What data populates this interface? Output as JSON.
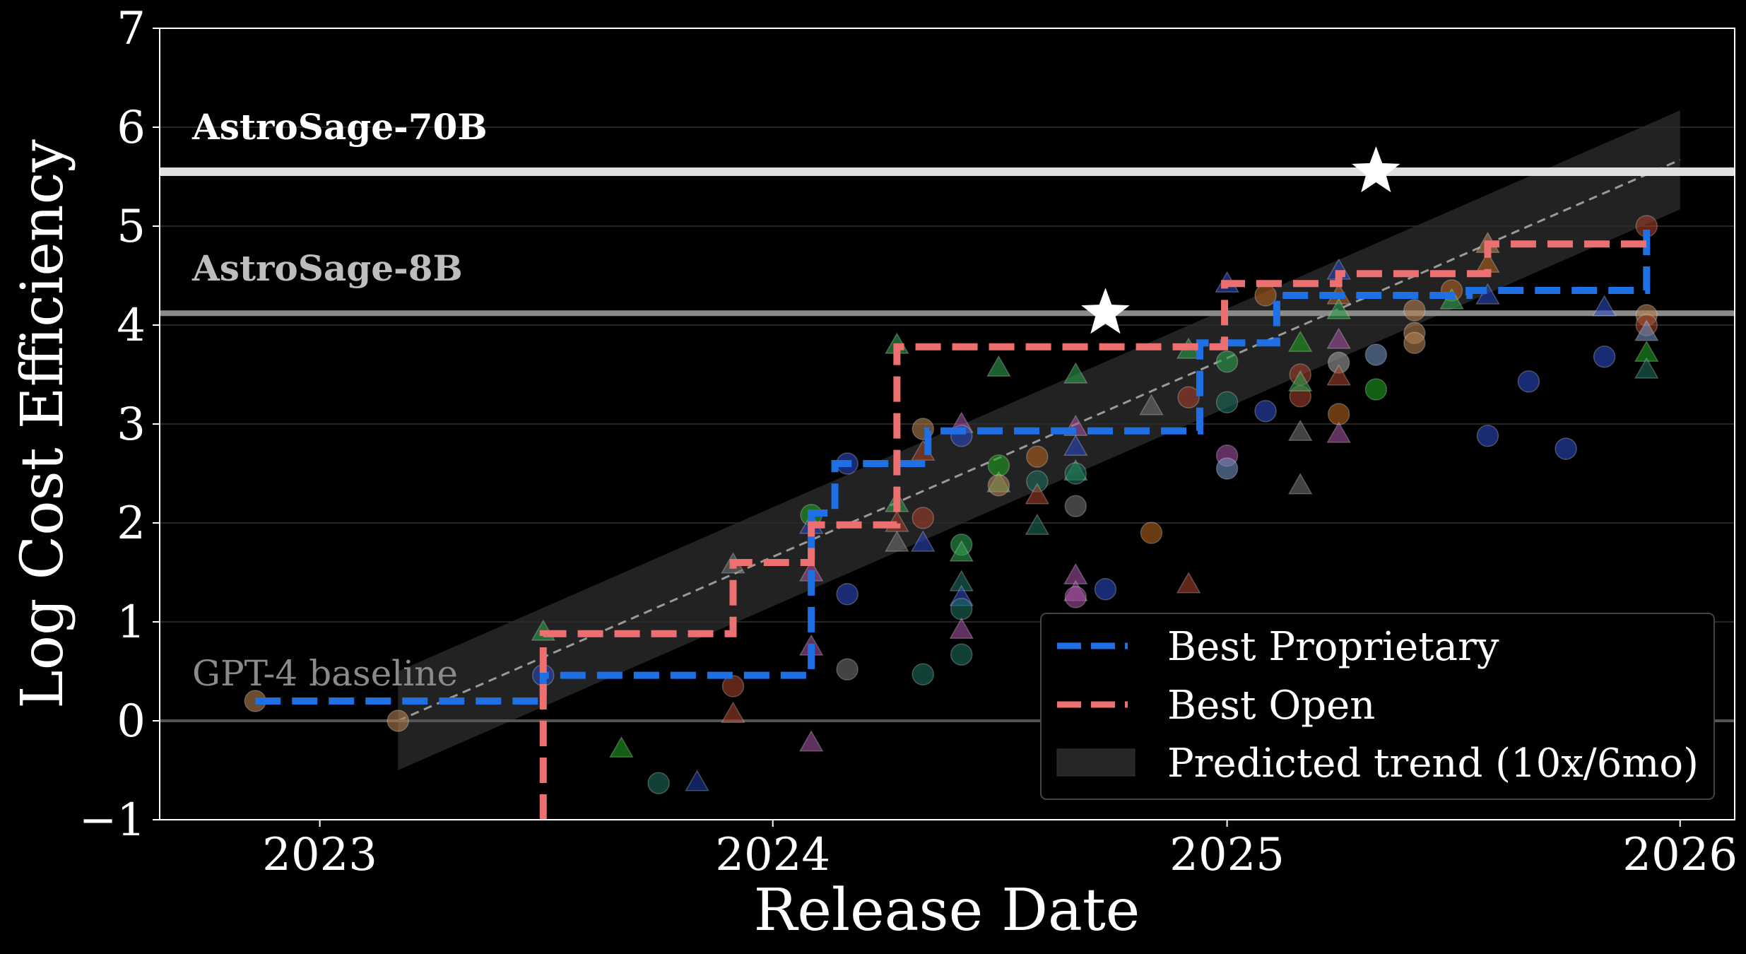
{
  "chart_data": {
    "type": "scatter",
    "title": "",
    "xlabel": "Release Date",
    "ylabel": "Log Cost Efficiency",
    "xlim": [
      "2022-08-25",
      "2026-02-14"
    ],
    "ylim": [
      -1,
      7
    ],
    "x_ticks": [
      {
        "date": "2023-01-01",
        "label": "2023"
      },
      {
        "date": "2024-01-01",
        "label": "2024"
      },
      {
        "date": "2025-01-01",
        "label": "2025"
      },
      {
        "date": "2026-01-01",
        "label": "2026"
      }
    ],
    "y_ticks": [
      {
        "value": -1,
        "label": "−1"
      },
      {
        "value": 0,
        "label": "0"
      },
      {
        "value": 1,
        "label": "1"
      },
      {
        "value": 2,
        "label": "2"
      },
      {
        "value": 3,
        "label": "3"
      },
      {
        "value": 4,
        "label": "4"
      },
      {
        "value": 5,
        "label": "5"
      },
      {
        "value": 6,
        "label": "6"
      },
      {
        "value": 7,
        "label": "7"
      }
    ],
    "grid": "horizontal",
    "legend_position": "lower-right",
    "reference_lines": [
      {
        "label": "AstroSage-70B",
        "y": 5.55,
        "color": "#e0e0e0"
      },
      {
        "label": "AstroSage-8B",
        "y": 4.12,
        "color": "#8a8a8a"
      },
      {
        "label": "GPT-4 baseline",
        "y": 0,
        "color": "#555555"
      }
    ],
    "stars": [
      {
        "date": "2024-09-25",
        "y": 4.12
      },
      {
        "date": "2025-05-01",
        "y": 5.55
      }
    ],
    "series": [
      {
        "name": "Best Proprietary",
        "color": "#1f6fe5",
        "style": "step-dashed",
        "points": [
          {
            "date": "2022-11-10",
            "y": 0.2
          },
          {
            "date": "2023-06-30",
            "y": 0.46
          },
          {
            "date": "2024-02-01",
            "y": 2.1
          },
          {
            "date": "2024-02-20",
            "y": 2.6
          },
          {
            "date": "2024-05-05",
            "y": 2.93
          },
          {
            "date": "2024-12-10",
            "y": 3.82
          },
          {
            "date": "2025-02-10",
            "y": 4.3
          },
          {
            "date": "2025-07-15",
            "y": 4.35
          },
          {
            "date": "2025-12-05",
            "y": 4.98
          }
        ]
      },
      {
        "name": "Best Open",
        "color": "#ec7070",
        "style": "step-dashed",
        "points": [
          {
            "date": "2023-06-30",
            "y": -1
          },
          {
            "date": "2023-06-30",
            "y": 0.88
          },
          {
            "date": "2023-11-30",
            "y": 1.6
          },
          {
            "date": "2024-02-01",
            "y": 1.98
          },
          {
            "date": "2024-04-10",
            "y": 3.78
          },
          {
            "date": "2024-12-30",
            "y": 4.42
          },
          {
            "date": "2025-04-01",
            "y": 4.52
          },
          {
            "date": "2025-07-30",
            "y": 4.82
          },
          {
            "date": "2025-12-05",
            "y": 4.82
          }
        ]
      }
    ],
    "trend": {
      "name": "Predicted trend (10x/6mo)",
      "start": {
        "date": "2023-03-05",
        "y": 0
      },
      "end": {
        "date": "2026-01-01",
        "y": 5.67
      },
      "band_halfwidth": 0.5
    },
    "scatter_points": [
      {
        "date": "2022-11-10",
        "y": 0.2,
        "shape": "circle",
        "color": "#b08050"
      },
      {
        "date": "2023-03-05",
        "y": 0.0,
        "shape": "circle",
        "color": "#b08050"
      },
      {
        "date": "2023-06-30",
        "y": 0.9,
        "shape": "triangle",
        "color": "#2e9e4e"
      },
      {
        "date": "2023-06-30",
        "y": 0.46,
        "shape": "circle",
        "color": "#2a4ac0"
      },
      {
        "date": "2023-09-01",
        "y": -0.28,
        "shape": "triangle",
        "color": "#1f9e1f"
      },
      {
        "date": "2023-10-01",
        "y": -0.63,
        "shape": "circle",
        "color": "#1a6a5a"
      },
      {
        "date": "2023-11-01",
        "y": -0.62,
        "shape": "triangle",
        "color": "#1a3aa0"
      },
      {
        "date": "2023-11-30",
        "y": 0.35,
        "shape": "circle",
        "color": "#a0402a"
      },
      {
        "date": "2023-11-30",
        "y": 0.07,
        "shape": "triangle",
        "color": "#a0402a"
      },
      {
        "date": "2023-11-30",
        "y": 1.58,
        "shape": "triangle",
        "color": "#707070"
      },
      {
        "date": "2024-02-01",
        "y": 2.08,
        "shape": "circle",
        "color": "#1f9e1f"
      },
      {
        "date": "2024-02-01",
        "y": 1.5,
        "shape": "triangle",
        "color": "#a050a0"
      },
      {
        "date": "2024-02-01",
        "y": 0.75,
        "shape": "triangle",
        "color": "#a050a0"
      },
      {
        "date": "2024-02-01",
        "y": -0.22,
        "shape": "triangle",
        "color": "#a050a0"
      },
      {
        "date": "2024-02-01",
        "y": 1.98,
        "shape": "triangle",
        "color": "#2a4ac0"
      },
      {
        "date": "2024-03-01",
        "y": 2.6,
        "shape": "circle",
        "color": "#2a4ac0"
      },
      {
        "date": "2024-03-01",
        "y": 1.28,
        "shape": "circle",
        "color": "#2a4ac0"
      },
      {
        "date": "2024-03-01",
        "y": 0.52,
        "shape": "circle",
        "color": "#707070"
      },
      {
        "date": "2024-04-10",
        "y": 3.8,
        "shape": "triangle",
        "color": "#2e9e4e"
      },
      {
        "date": "2024-04-10",
        "y": 2.2,
        "shape": "triangle",
        "color": "#2e9e4e"
      },
      {
        "date": "2024-04-10",
        "y": 1.8,
        "shape": "triangle",
        "color": "#707070"
      },
      {
        "date": "2024-04-10",
        "y": 2.0,
        "shape": "triangle",
        "color": "#a0402a"
      },
      {
        "date": "2024-05-01",
        "y": 2.95,
        "shape": "circle",
        "color": "#b08050"
      },
      {
        "date": "2024-05-01",
        "y": 2.72,
        "shape": "triangle",
        "color": "#a0402a"
      },
      {
        "date": "2024-05-01",
        "y": 2.05,
        "shape": "circle",
        "color": "#a0402a"
      },
      {
        "date": "2024-05-01",
        "y": 1.8,
        "shape": "triangle",
        "color": "#2a4ac0"
      },
      {
        "date": "2024-05-01",
        "y": 0.47,
        "shape": "circle",
        "color": "#1a6a5a"
      },
      {
        "date": "2024-06-01",
        "y": 3.0,
        "shape": "triangle",
        "color": "#a050a0"
      },
      {
        "date": "2024-06-01",
        "y": 2.88,
        "shape": "circle",
        "color": "#2a4ac0"
      },
      {
        "date": "2024-06-01",
        "y": 1.78,
        "shape": "circle",
        "color": "#2e9e4e"
      },
      {
        "date": "2024-06-01",
        "y": 1.7,
        "shape": "triangle",
        "color": "#2e9e4e"
      },
      {
        "date": "2024-06-01",
        "y": 1.4,
        "shape": "triangle",
        "color": "#1a6a5a"
      },
      {
        "date": "2024-06-01",
        "y": 1.25,
        "shape": "triangle",
        "color": "#2a4ac0"
      },
      {
        "date": "2024-06-01",
        "y": 1.13,
        "shape": "circle",
        "color": "#1a6a5a"
      },
      {
        "date": "2024-06-01",
        "y": 0.92,
        "shape": "triangle",
        "color": "#a050a0"
      },
      {
        "date": "2024-06-01",
        "y": 0.67,
        "shape": "circle",
        "color": "#1a6a5a"
      },
      {
        "date": "2024-07-01",
        "y": 3.57,
        "shape": "triangle",
        "color": "#2e9e4e"
      },
      {
        "date": "2024-07-01",
        "y": 2.58,
        "shape": "circle",
        "color": "#1f9e1f"
      },
      {
        "date": "2024-07-01",
        "y": 2.4,
        "shape": "triangle",
        "color": "#2e9e4e"
      },
      {
        "date": "2024-07-01",
        "y": 2.38,
        "shape": "circle",
        "color": "#b08050"
      },
      {
        "date": "2024-08-01",
        "y": 2.67,
        "shape": "circle",
        "color": "#b06020"
      },
      {
        "date": "2024-08-01",
        "y": 2.42,
        "shape": "circle",
        "color": "#1a6a5a"
      },
      {
        "date": "2024-08-01",
        "y": 2.28,
        "shape": "triangle",
        "color": "#a0402a"
      },
      {
        "date": "2024-08-01",
        "y": 1.97,
        "shape": "triangle",
        "color": "#1a6a5a"
      },
      {
        "date": "2024-09-01",
        "y": 3.5,
        "shape": "triangle",
        "color": "#2e9e4e"
      },
      {
        "date": "2024-09-01",
        "y": 2.97,
        "shape": "triangle",
        "color": "#a050a0"
      },
      {
        "date": "2024-09-01",
        "y": 2.77,
        "shape": "triangle",
        "color": "#2a4ac0"
      },
      {
        "date": "2024-09-01",
        "y": 2.52,
        "shape": "triangle",
        "color": "#2e9e4e"
      },
      {
        "date": "2024-09-01",
        "y": 2.5,
        "shape": "circle",
        "color": "#1a6a5a"
      },
      {
        "date": "2024-09-01",
        "y": 2.17,
        "shape": "circle",
        "color": "#707070"
      },
      {
        "date": "2024-09-01",
        "y": 1.47,
        "shape": "triangle",
        "color": "#a050a0"
      },
      {
        "date": "2024-09-01",
        "y": 1.3,
        "shape": "triangle",
        "color": "#a050a0"
      },
      {
        "date": "2024-09-01",
        "y": 1.25,
        "shape": "circle",
        "color": "#a050a0"
      },
      {
        "date": "2024-09-25",
        "y": 1.33,
        "shape": "circle",
        "color": "#2a4ac0"
      },
      {
        "date": "2024-11-01",
        "y": 3.18,
        "shape": "triangle",
        "color": "#707070"
      },
      {
        "date": "2024-11-01",
        "y": 1.9,
        "shape": "circle",
        "color": "#b06020"
      },
      {
        "date": "2024-12-01",
        "y": 3.75,
        "shape": "triangle",
        "color": "#2e9e4e"
      },
      {
        "date": "2024-12-01",
        "y": 3.27,
        "shape": "circle",
        "color": "#a0402a"
      },
      {
        "date": "2024-12-01",
        "y": 1.38,
        "shape": "triangle",
        "color": "#a0402a"
      },
      {
        "date": "2025-01-01",
        "y": 4.42,
        "shape": "triangle",
        "color": "#2a4ac0"
      },
      {
        "date": "2025-01-01",
        "y": 3.63,
        "shape": "circle",
        "color": "#2e9e4e"
      },
      {
        "date": "2025-01-01",
        "y": 3.22,
        "shape": "circle",
        "color": "#1a6a5a"
      },
      {
        "date": "2025-01-01",
        "y": 2.68,
        "shape": "circle",
        "color": "#a050a0"
      },
      {
        "date": "2025-01-01",
        "y": 2.55,
        "shape": "circle",
        "color": "#7090c0"
      },
      {
        "date": "2025-02-01",
        "y": 4.3,
        "shape": "circle",
        "color": "#b06020"
      },
      {
        "date": "2025-02-01",
        "y": 3.13,
        "shape": "circle",
        "color": "#2a4ac0"
      },
      {
        "date": "2025-03-01",
        "y": 3.82,
        "shape": "triangle",
        "color": "#1f9e1f"
      },
      {
        "date": "2025-03-01",
        "y": 3.5,
        "shape": "circle",
        "color": "#a0402a"
      },
      {
        "date": "2025-03-01",
        "y": 3.28,
        "shape": "circle",
        "color": "#a0402a"
      },
      {
        "date": "2025-03-01",
        "y": 3.42,
        "shape": "triangle",
        "color": "#2e9e4e"
      },
      {
        "date": "2025-03-01",
        "y": 2.92,
        "shape": "triangle",
        "color": "#707070"
      },
      {
        "date": "2025-03-01",
        "y": 2.38,
        "shape": "triangle",
        "color": "#707070"
      },
      {
        "date": "2025-04-01",
        "y": 4.55,
        "shape": "triangle",
        "color": "#2a4ac0"
      },
      {
        "date": "2025-04-01",
        "y": 4.3,
        "shape": "triangle",
        "color": "#b06020"
      },
      {
        "date": "2025-04-01",
        "y": 4.15,
        "shape": "triangle",
        "color": "#2e9e4e"
      },
      {
        "date": "2025-04-01",
        "y": 3.85,
        "shape": "triangle",
        "color": "#a050a0"
      },
      {
        "date": "2025-04-01",
        "y": 3.62,
        "shape": "circle",
        "color": "#a0a0a0"
      },
      {
        "date": "2025-04-01",
        "y": 3.48,
        "shape": "triangle",
        "color": "#a0402a"
      },
      {
        "date": "2025-04-01",
        "y": 3.1,
        "shape": "circle",
        "color": "#b06020"
      },
      {
        "date": "2025-04-01",
        "y": 2.9,
        "shape": "triangle",
        "color": "#a050a0"
      },
      {
        "date": "2025-05-01",
        "y": 3.7,
        "shape": "circle",
        "color": "#7090c0"
      },
      {
        "date": "2025-05-01",
        "y": 3.35,
        "shape": "circle",
        "color": "#1f9e1f"
      },
      {
        "date": "2025-06-01",
        "y": 4.15,
        "shape": "circle",
        "color": "#b08050"
      },
      {
        "date": "2025-06-01",
        "y": 3.92,
        "shape": "circle",
        "color": "#b08050"
      },
      {
        "date": "2025-06-01",
        "y": 3.82,
        "shape": "circle",
        "color": "#b08050"
      },
      {
        "date": "2025-07-01",
        "y": 4.35,
        "shape": "circle",
        "color": "#b06020"
      },
      {
        "date": "2025-07-01",
        "y": 4.25,
        "shape": "triangle",
        "color": "#2e9e4e"
      },
      {
        "date": "2025-07-30",
        "y": 4.82,
        "shape": "triangle",
        "color": "#b08050"
      },
      {
        "date": "2025-07-30",
        "y": 4.62,
        "shape": "triangle",
        "color": "#b06020"
      },
      {
        "date": "2025-07-30",
        "y": 4.3,
        "shape": "triangle",
        "color": "#2a4ac0"
      },
      {
        "date": "2025-07-30",
        "y": 2.88,
        "shape": "circle",
        "color": "#2a4ac0"
      },
      {
        "date": "2025-09-01",
        "y": 3.43,
        "shape": "circle",
        "color": "#2a4ac0"
      },
      {
        "date": "2025-10-01",
        "y": 2.75,
        "shape": "circle",
        "color": "#2a4ac0"
      },
      {
        "date": "2025-11-01",
        "y": 4.18,
        "shape": "triangle",
        "color": "#2a4ac0"
      },
      {
        "date": "2025-11-01",
        "y": 3.68,
        "shape": "circle",
        "color": "#2a4ac0"
      },
      {
        "date": "2025-12-05",
        "y": 5.0,
        "shape": "circle",
        "color": "#a0402a"
      },
      {
        "date": "2025-12-05",
        "y": 4.1,
        "shape": "circle",
        "color": "#b08050"
      },
      {
        "date": "2025-12-05",
        "y": 4.0,
        "shape": "circle",
        "color": "#a0402a"
      },
      {
        "date": "2025-12-05",
        "y": 3.93,
        "shape": "triangle",
        "color": "#7090c0"
      },
      {
        "date": "2025-12-05",
        "y": 3.72,
        "shape": "triangle",
        "color": "#1f9e1f"
      },
      {
        "date": "2025-12-05",
        "y": 3.55,
        "shape": "triangle",
        "color": "#1a6a5a"
      }
    ]
  }
}
